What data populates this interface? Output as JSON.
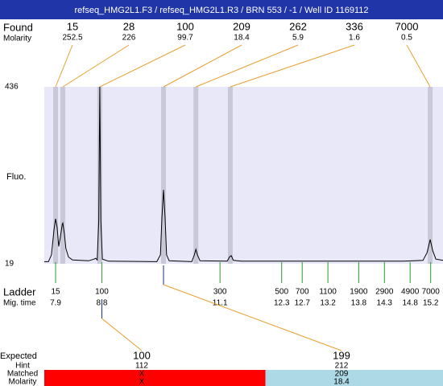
{
  "header": {
    "title": "refseq_HMG2L1.F3 / refseq_HMG2L1.R3 / BRN 553 / -1 / Well ID 1169112"
  },
  "found": {
    "label": "Found",
    "sublabel": "Molarity",
    "peaks": [
      {
        "size": 15,
        "molarity": 252.5,
        "time": 7.9
      },
      {
        "size": 28,
        "molarity": 226,
        "time": 8.04
      },
      {
        "size": 100,
        "molarity": 99.7,
        "time": 8.76
      },
      {
        "size": 209,
        "molarity": 18.4,
        "time": 10.0
      },
      {
        "size": 262,
        "molarity": 5.9,
        "time": 10.63
      },
      {
        "size": 336,
        "molarity": 1.6,
        "time": 11.3
      },
      {
        "size": 7000,
        "molarity": 0.5,
        "time": 15.19
      }
    ]
  },
  "chart_data": {
    "type": "line",
    "y_label": "Fluo.",
    "ylim": [
      19,
      436
    ],
    "yticks": [
      19,
      436
    ],
    "xlim": [
      7.68,
      15.44
    ],
    "x": [
      7.68,
      7.76,
      7.82,
      7.87,
      7.9,
      7.93,
      7.96,
      7.99,
      8.03,
      8.04,
      8.07,
      8.1,
      8.15,
      8.23,
      8.54,
      8.65,
      8.68,
      8.71,
      8.74,
      8.76,
      8.78,
      8.81,
      8.93,
      9.87,
      9.94,
      9.97,
      10.0,
      10.03,
      10.06,
      10.11,
      10.55,
      10.6,
      10.63,
      10.66,
      10.71,
      11.24,
      11.29,
      11.32,
      11.36,
      11.52,
      14.66,
      15.05,
      15.13,
      15.19,
      15.24,
      15.3,
      15.44
    ],
    "values": [
      24,
      24,
      40,
      100,
      125,
      105,
      60,
      80,
      112,
      115,
      90,
      55,
      35,
      28,
      26,
      30,
      32,
      28,
      120,
      436,
      120,
      30,
      25,
      24,
      40,
      130,
      193,
      130,
      40,
      26,
      24,
      40,
      53,
      40,
      26,
      25,
      36,
      38,
      27,
      25,
      25,
      27,
      45,
      76,
      50,
      30,
      27
    ],
    "color": "#000000",
    "band_color": "#c8c8d8",
    "background": "#e8e8f8"
  },
  "ladder": {
    "label": "Ladder",
    "sublabel": "Mig. time",
    "sizes": [
      15,
      100,
      300,
      500,
      700,
      1100,
      1900,
      2900,
      4900,
      7000
    ],
    "times": [
      7.9,
      8.8,
      11.1,
      12.3,
      12.7,
      13.2,
      13.8,
      14.3,
      14.8,
      15.2
    ]
  },
  "expected": {
    "label": "Expected",
    "row_labels": [
      "Hint",
      "Matched",
      "Molarity"
    ],
    "items": [
      {
        "size": 100,
        "hint": 112,
        "matched": "X",
        "molarity": "X",
        "color": "#ff0000"
      },
      {
        "size": 199,
        "hint": 212,
        "matched": 209,
        "molarity": 18.4,
        "color": "#add8e6"
      }
    ]
  }
}
